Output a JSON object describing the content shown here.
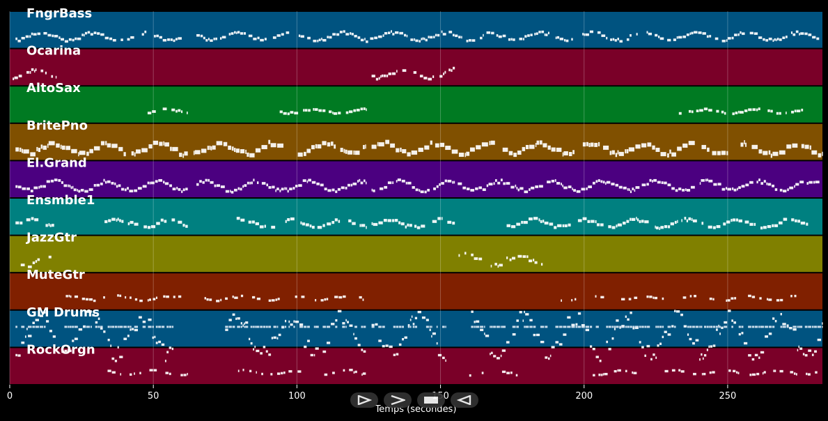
{
  "chart_data": {
    "type": "piano-roll",
    "xlabel": "Temps (secondes)",
    "xlim": [
      0,
      283
    ],
    "xticks": [
      0,
      50,
      100,
      150,
      200,
      250
    ],
    "grid": true,
    "tracks": [
      {
        "name": "FngrBass",
        "color": "#005380",
        "density": 0.8,
        "thick": 0.4,
        "pitchRange": 0.1,
        "segments": [
          [
            2,
            60
          ],
          [
            65,
            165
          ],
          [
            166,
            283
          ]
        ]
      },
      {
        "name": "Ocarina",
        "color": "#7a0028",
        "density": 0.7,
        "thick": 0.45,
        "pitchRange": 0.12,
        "segments": [
          [
            1,
            16
          ],
          [
            126,
            155
          ]
        ]
      },
      {
        "name": "AltoSax",
        "color": "#007a22",
        "density": 0.75,
        "thick": 0.45,
        "pitchRange": 0.05,
        "segments": [
          [
            48,
            62
          ],
          [
            94,
            124
          ],
          [
            233,
            278
          ]
        ]
      },
      {
        "name": "BritePno",
        "color": "#805000",
        "density": 0.95,
        "thick": 1.0,
        "pitchRange": 0.14,
        "segments": [
          [
            2,
            62
          ],
          [
            64,
            124
          ],
          [
            126,
            283
          ]
        ]
      },
      {
        "name": "El.Grand",
        "color": "#4b0080",
        "density": 0.95,
        "thick": 0.45,
        "pitchRange": 0.12,
        "segments": [
          [
            2,
            62
          ],
          [
            65,
            124
          ],
          [
            126,
            155
          ],
          [
            156,
            283
          ]
        ]
      },
      {
        "name": "Ensmble1",
        "color": "#008080",
        "density": 0.85,
        "thick": 0.55,
        "pitchRange": 0.1,
        "segments": [
          [
            2,
            16
          ],
          [
            33,
            62
          ],
          [
            79,
            124
          ],
          [
            126,
            155
          ],
          [
            172,
            278
          ]
        ]
      },
      {
        "name": "JazzGtr",
        "color": "#808000",
        "density": 0.6,
        "thick": 0.45,
        "pitchRange": 0.15,
        "segments": [
          [
            2,
            16
          ],
          [
            155,
            186
          ]
        ]
      },
      {
        "name": "MuteGtr",
        "color": "#802000",
        "density": 0.45,
        "thick": 0.35,
        "pitchRange": 0.06,
        "segments": [
          [
            18,
            62
          ],
          [
            65,
            124
          ],
          [
            190,
            278
          ]
        ]
      },
      {
        "name": "GM Drums",
        "color": "#005380",
        "density": 0.95,
        "thick": 0.35,
        "pitchRange": 0.5,
        "segments": [
          [
            2,
            16
          ],
          [
            18,
            57
          ],
          [
            75,
            124
          ],
          [
            126,
            152
          ],
          [
            160,
            283
          ]
        ]
      },
      {
        "name": "RockOrgn",
        "color": "#7a0028",
        "density": 0.4,
        "thick": 0.35,
        "pitchRange": 0.06,
        "segments": [
          [
            32,
            62
          ],
          [
            79,
            124
          ],
          [
            160,
            180
          ],
          [
            203,
            283
          ]
        ]
      }
    ]
  },
  "controls": {
    "play_label": "play",
    "forward_label": "forward",
    "stop_label": "stop",
    "back_label": "back"
  }
}
